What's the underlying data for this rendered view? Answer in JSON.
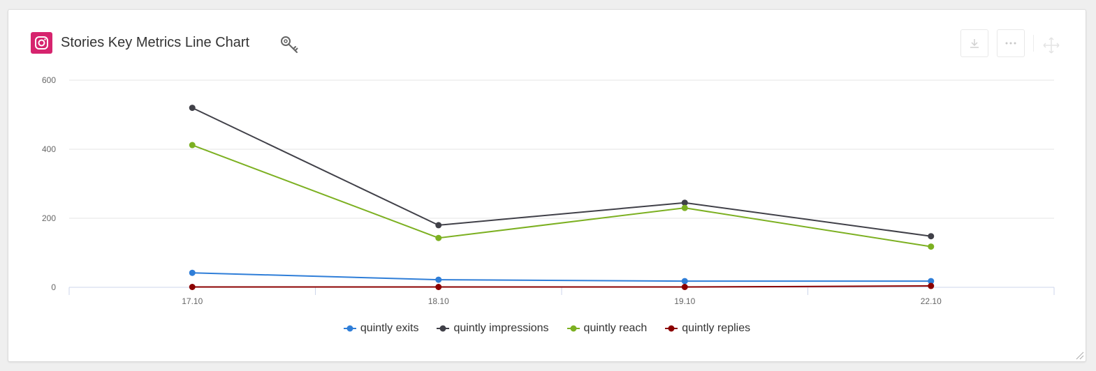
{
  "header": {
    "title": "Stories Key Metrics Line Chart",
    "app_icon": "instagram-icon",
    "key_icon": "key-icon",
    "toolbar": {
      "download_icon": "download-icon",
      "more_icon": "more-icon",
      "move_icon": "move-icon"
    }
  },
  "colors": {
    "instagram": "#d6246e",
    "grid": "#e6e6e6",
    "axis": "#ccd6eb",
    "text": "#666666"
  },
  "chart_data": {
    "type": "line",
    "title": "Stories Key Metrics Line Chart",
    "categories": [
      "17.10",
      "18.10",
      "19.10",
      "22.10"
    ],
    "ylim": [
      0,
      600
    ],
    "yticks": [
      "600",
      "400",
      "200",
      "0"
    ],
    "ytick_values": [
      600,
      400,
      200,
      0
    ],
    "grid": true,
    "legend_position": "bottom-center",
    "series": [
      {
        "name": "quintly exits",
        "color": "#2f7ed8",
        "values": [
          42,
          22,
          18,
          18
        ]
      },
      {
        "name": "quintly impressions",
        "color": "#404048",
        "values": [
          520,
          180,
          245,
          148
        ]
      },
      {
        "name": "quintly reach",
        "color": "#7cb021",
        "values": [
          412,
          143,
          230,
          118
        ]
      },
      {
        "name": "quintly replies",
        "color": "#8b0000",
        "values": [
          1,
          1,
          1,
          4
        ]
      }
    ]
  }
}
